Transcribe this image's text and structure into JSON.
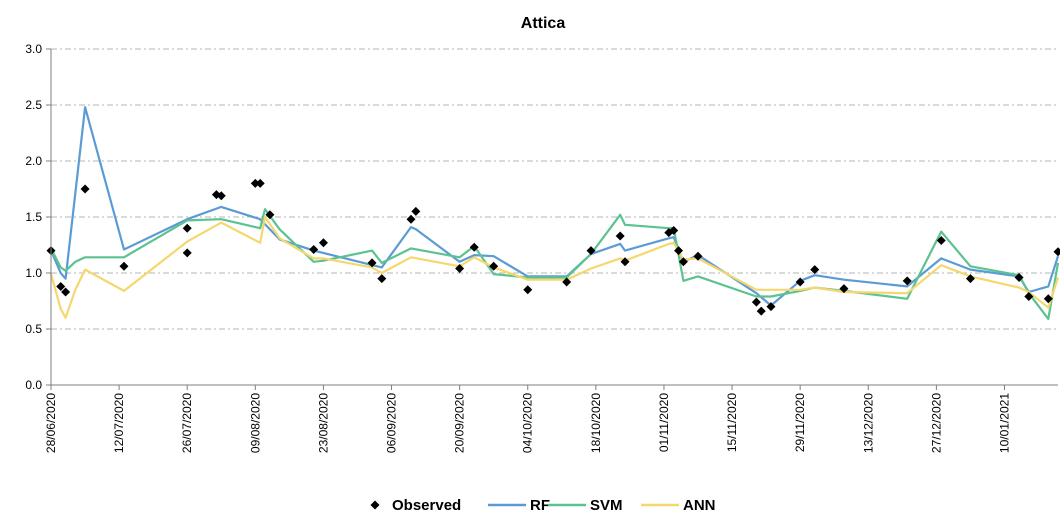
{
  "chart_data": {
    "type": "line",
    "title": "Attica",
    "xlabel": "",
    "ylabel": "",
    "ylim": [
      0,
      3
    ],
    "y_ticks": [
      "0.0",
      "0.5",
      "1.0",
      "1.5",
      "2.0",
      "2.5",
      "3.0"
    ],
    "x_range": [
      "2020-06-28",
      "2021-01-21"
    ],
    "x_ticks": [
      "28/06/2020",
      "12/07/2020",
      "26/07/2020",
      "09/08/2020",
      "23/08/2020",
      "06/09/2020",
      "20/09/2020",
      "04/10/2020",
      "18/10/2020",
      "01/11/2020",
      "15/11/2020",
      "29/11/2020",
      "13/12/2020",
      "27/12/2020",
      "10/01/2021"
    ],
    "grid": "horizontal dashed",
    "legend_position": "bottom",
    "series": [
      {
        "name": "Observed",
        "style": "markers",
        "color": "#000000",
        "points": [
          [
            "2020-06-28",
            1.2
          ],
          [
            "2020-06-30",
            0.88
          ],
          [
            "2020-07-01",
            0.83
          ],
          [
            "2020-07-05",
            1.75
          ],
          [
            "2020-07-13",
            1.06
          ],
          [
            "2020-07-26",
            1.18
          ],
          [
            "2020-07-26",
            1.4
          ],
          [
            "2020-08-01",
            1.7
          ],
          [
            "2020-08-02",
            1.69
          ],
          [
            "2020-08-09",
            1.8
          ],
          [
            "2020-08-10",
            1.8
          ],
          [
            "2020-08-12",
            1.52
          ],
          [
            "2020-08-21",
            1.21
          ],
          [
            "2020-08-23",
            1.27
          ],
          [
            "2020-09-02",
            1.09
          ],
          [
            "2020-09-04",
            0.95
          ],
          [
            "2020-09-10",
            1.48
          ],
          [
            "2020-09-11",
            1.55
          ],
          [
            "2020-09-20",
            1.04
          ],
          [
            "2020-09-23",
            1.23
          ],
          [
            "2020-09-27",
            1.06
          ],
          [
            "2020-10-04",
            0.85
          ],
          [
            "2020-10-12",
            0.92
          ],
          [
            "2020-10-17",
            1.2
          ],
          [
            "2020-10-23",
            1.33
          ],
          [
            "2020-10-24",
            1.1
          ],
          [
            "2020-11-02",
            1.36
          ],
          [
            "2020-11-03",
            1.38
          ],
          [
            "2020-11-04",
            1.2
          ],
          [
            "2020-11-05",
            1.1
          ],
          [
            "2020-11-08",
            1.15
          ],
          [
            "2020-11-20",
            0.74
          ],
          [
            "2020-11-21",
            0.66
          ],
          [
            "2020-11-23",
            0.7
          ],
          [
            "2020-11-29",
            0.92
          ],
          [
            "2020-12-02",
            1.03
          ],
          [
            "2020-12-08",
            0.86
          ],
          [
            "2020-12-21",
            0.93
          ],
          [
            "2020-12-28",
            1.29
          ],
          [
            "2021-01-03",
            0.95
          ],
          [
            "2021-01-13",
            0.96
          ],
          [
            "2021-01-15",
            0.79
          ],
          [
            "2021-01-19",
            0.77
          ],
          [
            "2021-01-21",
            1.19
          ]
        ]
      },
      {
        "name": "RF",
        "style": "line",
        "color": "#5b9bd5",
        "points": [
          [
            "2020-06-28",
            1.2
          ],
          [
            "2020-06-30",
            1.0
          ],
          [
            "2020-07-01",
            0.95
          ],
          [
            "2020-07-05",
            2.48
          ],
          [
            "2020-07-13",
            1.21
          ],
          [
            "2020-07-26",
            1.48
          ],
          [
            "2020-08-02",
            1.59
          ],
          [
            "2020-08-10",
            1.48
          ],
          [
            "2020-08-14",
            1.3
          ],
          [
            "2020-08-21",
            1.2
          ],
          [
            "2020-09-04",
            1.05
          ],
          [
            "2020-09-10",
            1.41
          ],
          [
            "2020-09-11",
            1.39
          ],
          [
            "2020-09-20",
            1.1
          ],
          [
            "2020-09-23",
            1.16
          ],
          [
            "2020-09-27",
            1.15
          ],
          [
            "2020-10-04",
            0.97
          ],
          [
            "2020-10-12",
            0.97
          ],
          [
            "2020-10-17",
            1.17
          ],
          [
            "2020-10-23",
            1.26
          ],
          [
            "2020-10-24",
            1.2
          ],
          [
            "2020-11-02",
            1.31
          ],
          [
            "2020-11-03",
            1.32
          ],
          [
            "2020-11-05",
            1.1
          ],
          [
            "2020-11-08",
            1.16
          ],
          [
            "2020-11-20",
            0.82
          ],
          [
            "2020-11-23",
            0.71
          ],
          [
            "2020-11-29",
            0.93
          ],
          [
            "2020-12-02",
            0.98
          ],
          [
            "2020-12-08",
            0.94
          ],
          [
            "2020-12-21",
            0.88
          ],
          [
            "2020-12-28",
            1.13
          ],
          [
            "2021-01-03",
            1.03
          ],
          [
            "2021-01-13",
            0.97
          ],
          [
            "2021-01-15",
            0.83
          ],
          [
            "2021-01-19",
            0.88
          ],
          [
            "2021-01-21",
            1.15
          ]
        ]
      },
      {
        "name": "SVM",
        "style": "line",
        "color": "#5cc28f",
        "points": [
          [
            "2020-06-28",
            1.22
          ],
          [
            "2020-06-30",
            1.05
          ],
          [
            "2020-07-01",
            1.02
          ],
          [
            "2020-07-03",
            1.1
          ],
          [
            "2020-07-05",
            1.14
          ],
          [
            "2020-07-13",
            1.14
          ],
          [
            "2020-07-26",
            1.47
          ],
          [
            "2020-08-02",
            1.48
          ],
          [
            "2020-08-10",
            1.4
          ],
          [
            "2020-08-11",
            1.57
          ],
          [
            "2020-08-14",
            1.39
          ],
          [
            "2020-08-21",
            1.1
          ],
          [
            "2020-08-23",
            1.11
          ],
          [
            "2020-09-02",
            1.2
          ],
          [
            "2020-09-04",
            1.09
          ],
          [
            "2020-09-10",
            1.22
          ],
          [
            "2020-09-20",
            1.14
          ],
          [
            "2020-09-23",
            1.24
          ],
          [
            "2020-09-27",
            0.99
          ],
          [
            "2020-10-04",
            0.96
          ],
          [
            "2020-10-12",
            0.96
          ],
          [
            "2020-10-17",
            1.17
          ],
          [
            "2020-10-23",
            1.52
          ],
          [
            "2020-10-24",
            1.43
          ],
          [
            "2020-11-02",
            1.4
          ],
          [
            "2020-11-03",
            1.4
          ],
          [
            "2020-11-05",
            0.93
          ],
          [
            "2020-11-08",
            0.97
          ],
          [
            "2020-11-20",
            0.79
          ],
          [
            "2020-11-23",
            0.79
          ],
          [
            "2020-11-29",
            0.84
          ],
          [
            "2020-12-02",
            0.87
          ],
          [
            "2020-12-08",
            0.84
          ],
          [
            "2020-12-21",
            0.77
          ],
          [
            "2020-12-28",
            1.37
          ],
          [
            "2021-01-03",
            1.06
          ],
          [
            "2021-01-13",
            0.98
          ],
          [
            "2021-01-15",
            0.82
          ],
          [
            "2021-01-19",
            0.59
          ],
          [
            "2021-01-21",
            1.09
          ]
        ]
      },
      {
        "name": "ANN",
        "style": "line",
        "color": "#f5d76e",
        "points": [
          [
            "2020-06-28",
            0.99
          ],
          [
            "2020-06-30",
            0.68
          ],
          [
            "2020-07-01",
            0.6
          ],
          [
            "2020-07-03",
            0.85
          ],
          [
            "2020-07-05",
            1.03
          ],
          [
            "2020-07-13",
            0.84
          ],
          [
            "2020-07-26",
            1.28
          ],
          [
            "2020-08-02",
            1.45
          ],
          [
            "2020-08-10",
            1.27
          ],
          [
            "2020-08-11",
            1.5
          ],
          [
            "2020-08-14",
            1.31
          ],
          [
            "2020-08-21",
            1.13
          ],
          [
            "2020-08-23",
            1.13
          ],
          [
            "2020-09-02",
            1.05
          ],
          [
            "2020-09-04",
            1.0
          ],
          [
            "2020-09-10",
            1.14
          ],
          [
            "2020-09-20",
            1.06
          ],
          [
            "2020-09-23",
            1.14
          ],
          [
            "2020-09-27",
            1.05
          ],
          [
            "2020-10-04",
            0.94
          ],
          [
            "2020-10-12",
            0.94
          ],
          [
            "2020-10-17",
            1.04
          ],
          [
            "2020-10-23",
            1.13
          ],
          [
            "2020-10-24",
            1.11
          ],
          [
            "2020-11-02",
            1.26
          ],
          [
            "2020-11-03",
            1.27
          ],
          [
            "2020-11-05",
            1.12
          ],
          [
            "2020-11-08",
            1.13
          ],
          [
            "2020-11-20",
            0.85
          ],
          [
            "2020-11-23",
            0.85
          ],
          [
            "2020-11-29",
            0.85
          ],
          [
            "2020-12-02",
            0.87
          ],
          [
            "2020-12-08",
            0.83
          ],
          [
            "2020-12-21",
            0.82
          ],
          [
            "2020-12-28",
            1.07
          ],
          [
            "2021-01-03",
            0.97
          ],
          [
            "2021-01-13",
            0.87
          ],
          [
            "2021-01-15",
            0.83
          ],
          [
            "2021-01-19",
            0.69
          ],
          [
            "2021-01-21",
            0.96
          ]
        ]
      }
    ]
  }
}
